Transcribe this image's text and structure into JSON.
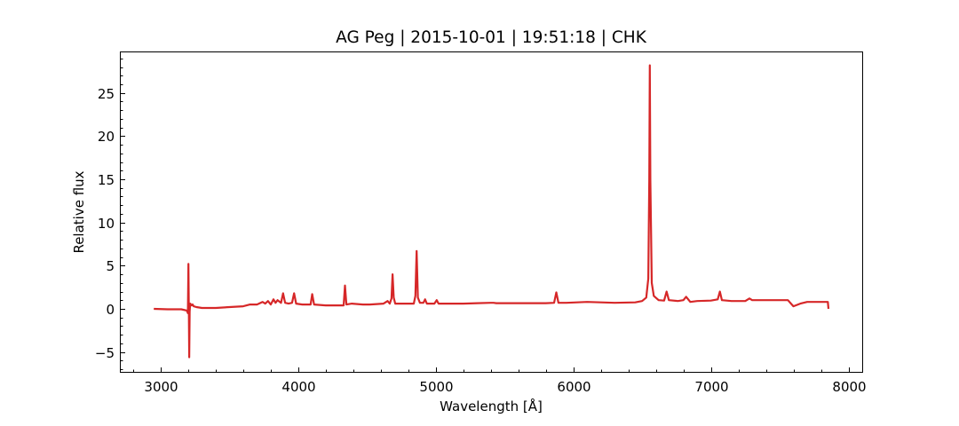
{
  "chart_data": {
    "type": "line",
    "title": "AG Peg | 2015-10-01 | 19:51:18 | CHK",
    "xlabel": "Wavelength [Å]",
    "ylabel": "Relative flux",
    "xlim": [
      2710,
      8100
    ],
    "ylim": [
      -7.3,
      29.7
    ],
    "x_ticks": [
      3000,
      4000,
      5000,
      6000,
      7000,
      8000
    ],
    "y_ticks": [
      -5,
      0,
      5,
      10,
      15,
      20,
      25
    ],
    "x_minor_step": 200,
    "y_minor_step": 1,
    "grid": false,
    "color": "#d62728",
    "series": [
      {
        "x": [
          2950,
          3050,
          3150,
          3190,
          3198,
          3202,
          3205,
          3208,
          3211,
          3215,
          3225,
          3232,
          3240,
          3260,
          3300,
          3400,
          3500,
          3600,
          3650,
          3700,
          3740,
          3760,
          3780,
          3800,
          3820,
          3835,
          3850,
          3875,
          3890,
          3905,
          3930,
          3955,
          3970,
          3985,
          4030,
          4090,
          4102,
          4115,
          4200,
          4330,
          4340,
          4350,
          4390,
          4470,
          4520,
          4620,
          4650,
          4665,
          4678,
          4686,
          4694,
          4705,
          4760,
          4840,
          4852,
          4861,
          4870,
          4885,
          4910,
          4922,
          4935,
          4990,
          5007,
          5020,
          5100,
          5200,
          5300,
          5400,
          5420,
          5440,
          5600,
          5800,
          5860,
          5876,
          5892,
          5950,
          6100,
          6300,
          6450,
          6500,
          6530,
          6545,
          6552,
          6556,
          6560,
          6570,
          6585,
          6620,
          6660,
          6678,
          6695,
          6760,
          6800,
          6820,
          6850,
          6900,
          7000,
          7050,
          7065,
          7080,
          7150,
          7250,
          7280,
          7300,
          7400,
          7500,
          7560,
          7600,
          7650,
          7700,
          7800,
          7850,
          7855
        ],
        "y": [
          0.0,
          -0.05,
          -0.05,
          -0.2,
          -0.5,
          5.2,
          -0.4,
          -5.6,
          -0.3,
          0.6,
          0.4,
          0.5,
          0.3,
          0.2,
          0.1,
          0.1,
          0.2,
          0.3,
          0.5,
          0.5,
          0.8,
          0.6,
          0.9,
          0.5,
          1.1,
          0.7,
          1.0,
          0.7,
          1.8,
          0.7,
          0.6,
          0.7,
          1.8,
          0.6,
          0.5,
          0.5,
          1.7,
          0.5,
          0.4,
          0.4,
          2.7,
          0.5,
          0.6,
          0.5,
          0.5,
          0.6,
          0.9,
          0.6,
          1.2,
          4.0,
          1.3,
          0.6,
          0.6,
          0.6,
          1.5,
          6.7,
          1.3,
          0.7,
          0.7,
          1.1,
          0.6,
          0.6,
          1.0,
          0.6,
          0.6,
          0.6,
          0.65,
          0.7,
          0.7,
          0.65,
          0.65,
          0.65,
          0.7,
          1.9,
          0.7,
          0.7,
          0.8,
          0.7,
          0.75,
          0.9,
          1.3,
          3.5,
          15.0,
          28.2,
          15.0,
          3.0,
          1.5,
          1.0,
          0.95,
          2.0,
          1.0,
          0.9,
          1.0,
          1.4,
          0.8,
          0.9,
          0.95,
          1.1,
          2.0,
          1.0,
          0.9,
          0.9,
          1.2,
          1.0,
          1.0,
          1.0,
          1.0,
          0.3,
          0.6,
          0.8,
          0.8,
          0.8,
          0.0
        ]
      }
    ]
  }
}
